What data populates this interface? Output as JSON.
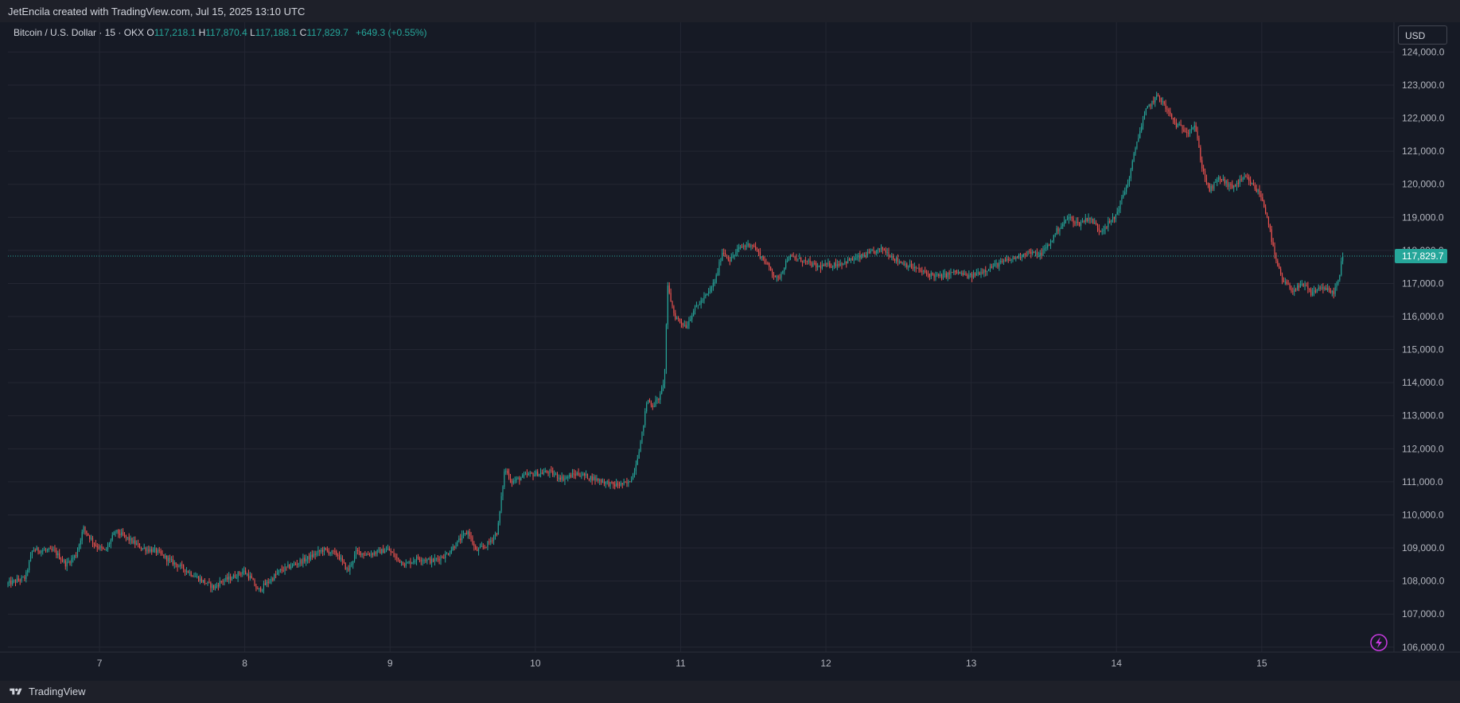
{
  "header": {
    "attribution": "JetEncila created with TradingView.com, Jul 15, 2025 13:10 UTC"
  },
  "legend": {
    "symbol": "Bitcoin / U.S. Dollar · 15 · OKX",
    "o_label": "O",
    "o_value": "117,218.1",
    "h_label": "H",
    "h_value": "117,870.4",
    "l_label": "L",
    "l_value": "117,188.1",
    "c_label": "C",
    "c_value": "117,829.7",
    "change": "+649.3 (+0.55%)"
  },
  "currency_button": "USD",
  "last_price_label": "117,829.7",
  "footer": {
    "brand": "TradingView"
  },
  "icons": {
    "replay": "lightning-icon",
    "logo": "tradingview-logo-icon"
  },
  "colors": {
    "up": "#26a69a",
    "down": "#ef5350",
    "background": "#161a25",
    "grid": "#242733",
    "lightning": "#c83ae0"
  },
  "chart_data": {
    "type": "candlestick",
    "timeframe": "15",
    "exchange": "OKX",
    "symbol": "Bitcoin / U.S. Dollar",
    "y_ticks": [
      106000,
      107000,
      108000,
      109000,
      110000,
      111000,
      112000,
      113000,
      114000,
      115000,
      116000,
      117000,
      118000,
      119000,
      120000,
      121000,
      122000,
      123000,
      124000
    ],
    "y_tick_labels": [
      "106,000.0",
      "107,000.0",
      "108,000.0",
      "109,000.0",
      "110,000.0",
      "111,000.0",
      "112,000.0",
      "113,000.0",
      "114,000.0",
      "115,000.0",
      "116,000.0",
      "117,000.0",
      "118,000.0",
      "119,000.0",
      "120,000.0",
      "121,000.0",
      "122,000.0",
      "123,000.0",
      "124,000.0"
    ],
    "x_labels": [
      "7",
      "8",
      "9",
      "10",
      "11",
      "12",
      "13",
      "14",
      "15"
    ],
    "x_label_days": [
      7,
      8,
      9,
      10,
      11,
      12,
      13,
      14,
      15
    ],
    "x_range_days": [
      6.37,
      15.91
    ],
    "ylim": [
      105850,
      124900
    ],
    "last_price": 117829.7,
    "price_path": [
      [
        6.37,
        107900
      ],
      [
        6.5,
        108100
      ],
      [
        6.55,
        108950
      ],
      [
        6.7,
        108900
      ],
      [
        6.78,
        108500
      ],
      [
        6.85,
        108800
      ],
      [
        6.9,
        109600
      ],
      [
        6.98,
        109100
      ],
      [
        7.05,
        108900
      ],
      [
        7.12,
        109500
      ],
      [
        7.2,
        109300
      ],
      [
        7.3,
        109000
      ],
      [
        7.4,
        108900
      ],
      [
        7.5,
        108600
      ],
      [
        7.58,
        108400
      ],
      [
        7.65,
        108200
      ],
      [
        7.72,
        108000
      ],
      [
        7.8,
        107800
      ],
      [
        7.85,
        108000
      ],
      [
        7.92,
        108100
      ],
      [
        8.0,
        108300
      ],
      [
        8.05,
        108100
      ],
      [
        8.1,
        107700
      ],
      [
        8.18,
        108000
      ],
      [
        8.25,
        108300
      ],
      [
        8.35,
        108500
      ],
      [
        8.45,
        108700
      ],
      [
        8.55,
        108950
      ],
      [
        8.65,
        108800
      ],
      [
        8.72,
        108300
      ],
      [
        8.78,
        108900
      ],
      [
        8.85,
        108800
      ],
      [
        9.0,
        108950
      ],
      [
        9.05,
        108700
      ],
      [
        9.12,
        108500
      ],
      [
        9.2,
        108700
      ],
      [
        9.3,
        108600
      ],
      [
        9.4,
        108800
      ],
      [
        9.5,
        109300
      ],
      [
        9.55,
        109500
      ],
      [
        9.6,
        108900
      ],
      [
        9.68,
        109100
      ],
      [
        9.75,
        109500
      ],
      [
        9.8,
        111400
      ],
      [
        9.85,
        111000
      ],
      [
        9.95,
        111200
      ],
      [
        10.1,
        111300
      ],
      [
        10.2,
        111100
      ],
      [
        10.3,
        111250
      ],
      [
        10.45,
        111050
      ],
      [
        10.55,
        110900
      ],
      [
        10.65,
        110950
      ],
      [
        10.68,
        111200
      ],
      [
        10.7,
        111500
      ],
      [
        10.74,
        112300
      ],
      [
        10.78,
        113500
      ],
      [
        10.82,
        113300
      ],
      [
        10.87,
        113600
      ],
      [
        10.9,
        114200
      ],
      [
        10.92,
        116900
      ],
      [
        10.97,
        116000
      ],
      [
        11.05,
        115700
      ],
      [
        11.1,
        116200
      ],
      [
        11.2,
        116700
      ],
      [
        11.25,
        117100
      ],
      [
        11.3,
        118000
      ],
      [
        11.35,
        117700
      ],
      [
        11.42,
        118100
      ],
      [
        11.5,
        118200
      ],
      [
        11.6,
        117600
      ],
      [
        11.68,
        117100
      ],
      [
        11.75,
        117800
      ],
      [
        11.85,
        117700
      ],
      [
        11.95,
        117500
      ],
      [
        12.1,
        117600
      ],
      [
        12.25,
        117800
      ],
      [
        12.4,
        118050
      ],
      [
        12.5,
        117700
      ],
      [
        12.6,
        117500
      ],
      [
        12.7,
        117300
      ],
      [
        12.8,
        117200
      ],
      [
        12.9,
        117350
      ],
      [
        13.0,
        117200
      ],
      [
        13.1,
        117400
      ],
      [
        13.2,
        117600
      ],
      [
        13.3,
        117750
      ],
      [
        13.4,
        117950
      ],
      [
        13.48,
        117850
      ],
      [
        13.55,
        118200
      ],
      [
        13.6,
        118600
      ],
      [
        13.68,
        119000
      ],
      [
        13.75,
        118800
      ],
      [
        13.82,
        119000
      ],
      [
        13.9,
        118600
      ],
      [
        14.0,
        119000
      ],
      [
        14.05,
        119600
      ],
      [
        14.1,
        120200
      ],
      [
        14.15,
        121300
      ],
      [
        14.22,
        122300
      ],
      [
        14.3,
        122700
      ],
      [
        14.35,
        122300
      ],
      [
        14.42,
        121800
      ],
      [
        14.5,
        121600
      ],
      [
        14.55,
        121800
      ],
      [
        14.6,
        120500
      ],
      [
        14.65,
        119800
      ],
      [
        14.72,
        120200
      ],
      [
        14.8,
        119900
      ],
      [
        14.9,
        120200
      ],
      [
        15.0,
        119700
      ],
      [
        15.05,
        119000
      ],
      [
        15.1,
        117800
      ],
      [
        15.15,
        117100
      ],
      [
        15.22,
        116800
      ],
      [
        15.3,
        116950
      ],
      [
        15.35,
        116700
      ],
      [
        15.42,
        116900
      ],
      [
        15.5,
        116700
      ],
      [
        15.55,
        117218.1
      ],
      [
        15.56,
        117829.7
      ]
    ]
  }
}
